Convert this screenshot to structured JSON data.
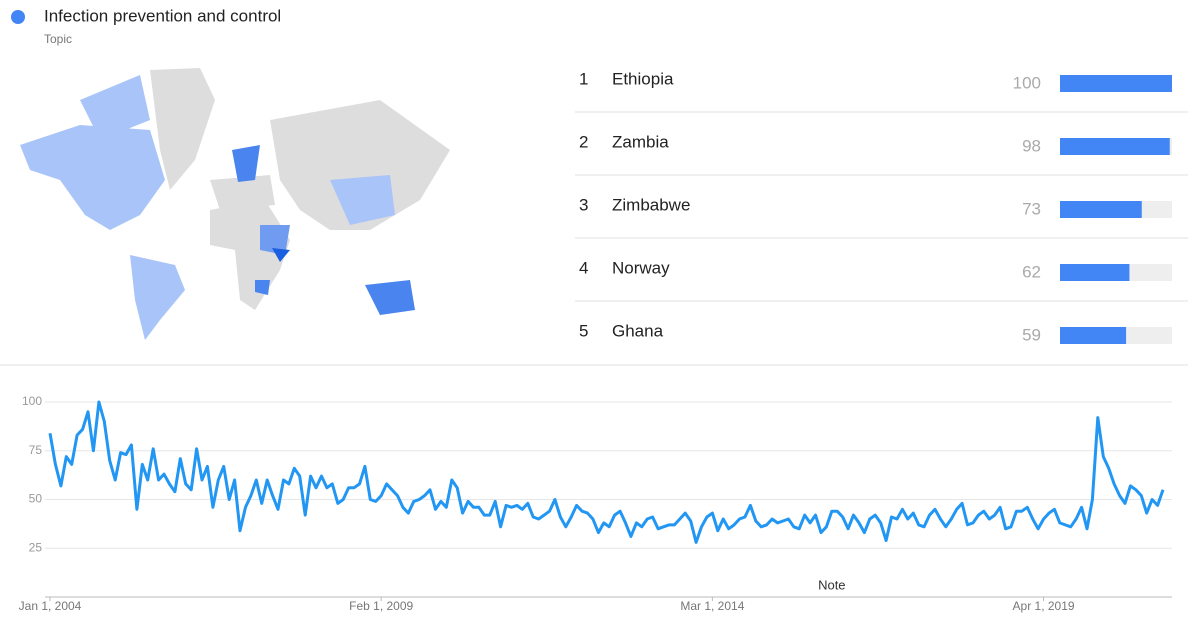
{
  "header": {
    "title": "Infection prevention and control",
    "subtitle": "Topic"
  },
  "ranking": [
    {
      "rank": 1,
      "name": "Ethiopia",
      "value": 100
    },
    {
      "rank": 2,
      "name": "Zambia",
      "value": 98
    },
    {
      "rank": 3,
      "name": "Zimbabwe",
      "value": 73
    },
    {
      "rank": 4,
      "name": "Norway",
      "value": 62
    },
    {
      "rank": 5,
      "name": "Ghana",
      "value": 59
    }
  ],
  "chart_data": {
    "type": "line",
    "color": "#2196f3",
    "values": [
      84,
      68,
      57,
      72,
      68,
      83,
      86,
      95,
      75,
      100,
      90,
      70,
      60,
      74,
      73,
      78,
      45,
      68,
      60,
      76,
      60,
      63,
      58,
      54,
      71,
      58,
      55,
      76,
      60,
      67,
      46,
      60,
      67,
      50,
      60,
      34,
      46,
      52,
      60,
      48,
      60,
      52,
      45,
      60,
      58,
      66,
      62,
      42,
      62,
      56,
      62,
      56,
      58,
      48,
      50,
      56,
      56,
      58,
      67,
      50,
      49,
      52,
      58,
      55,
      52,
      46,
      43,
      49,
      50,
      52,
      55,
      45,
      49,
      46,
      60,
      56,
      43,
      49,
      46,
      46,
      42,
      42,
      49,
      36,
      47,
      46,
      47,
      45,
      48,
      41,
      40,
      42,
      44,
      50,
      41,
      36,
      41,
      47,
      44,
      43,
      40,
      33,
      38,
      36,
      42,
      44,
      38,
      31,
      38,
      36,
      40,
      41,
      35,
      36,
      37,
      37,
      40,
      43,
      39,
      28,
      36,
      41,
      43,
      34,
      40,
      35,
      37,
      40,
      41,
      47,
      39,
      36,
      37,
      40,
      38,
      39,
      40,
      36,
      35,
      42,
      38,
      42,
      33,
      36,
      44,
      44,
      41,
      35,
      42,
      38,
      33,
      40,
      42,
      38,
      29,
      41,
      40,
      45,
      40,
      43,
      37,
      36,
      42,
      45,
      40,
      36,
      40,
      45,
      48,
      37,
      38,
      42,
      44,
      40,
      42,
      46,
      35,
      36,
      44,
      44,
      46,
      40,
      35,
      40,
      43,
      45,
      38,
      37,
      36,
      40,
      46,
      35,
      50,
      92,
      72,
      66,
      58,
      52,
      48,
      57,
      55,
      52,
      43,
      50,
      47,
      55
    ],
    "xlim": [
      0,
      205
    ],
    "xticks": [
      {
        "value": 0,
        "label": "Jan 1, 2004"
      },
      {
        "value": 61,
        "label": "Feb 1, 2009"
      },
      {
        "value": 122,
        "label": "Mar 1, 2014"
      },
      {
        "value": 183,
        "label": "Apr 1, 2019"
      }
    ],
    "ylim": [
      0,
      100
    ],
    "yticks": [
      25,
      50,
      75,
      100
    ],
    "grid": true,
    "annotation": {
      "x": 144,
      "text": "Note"
    }
  }
}
